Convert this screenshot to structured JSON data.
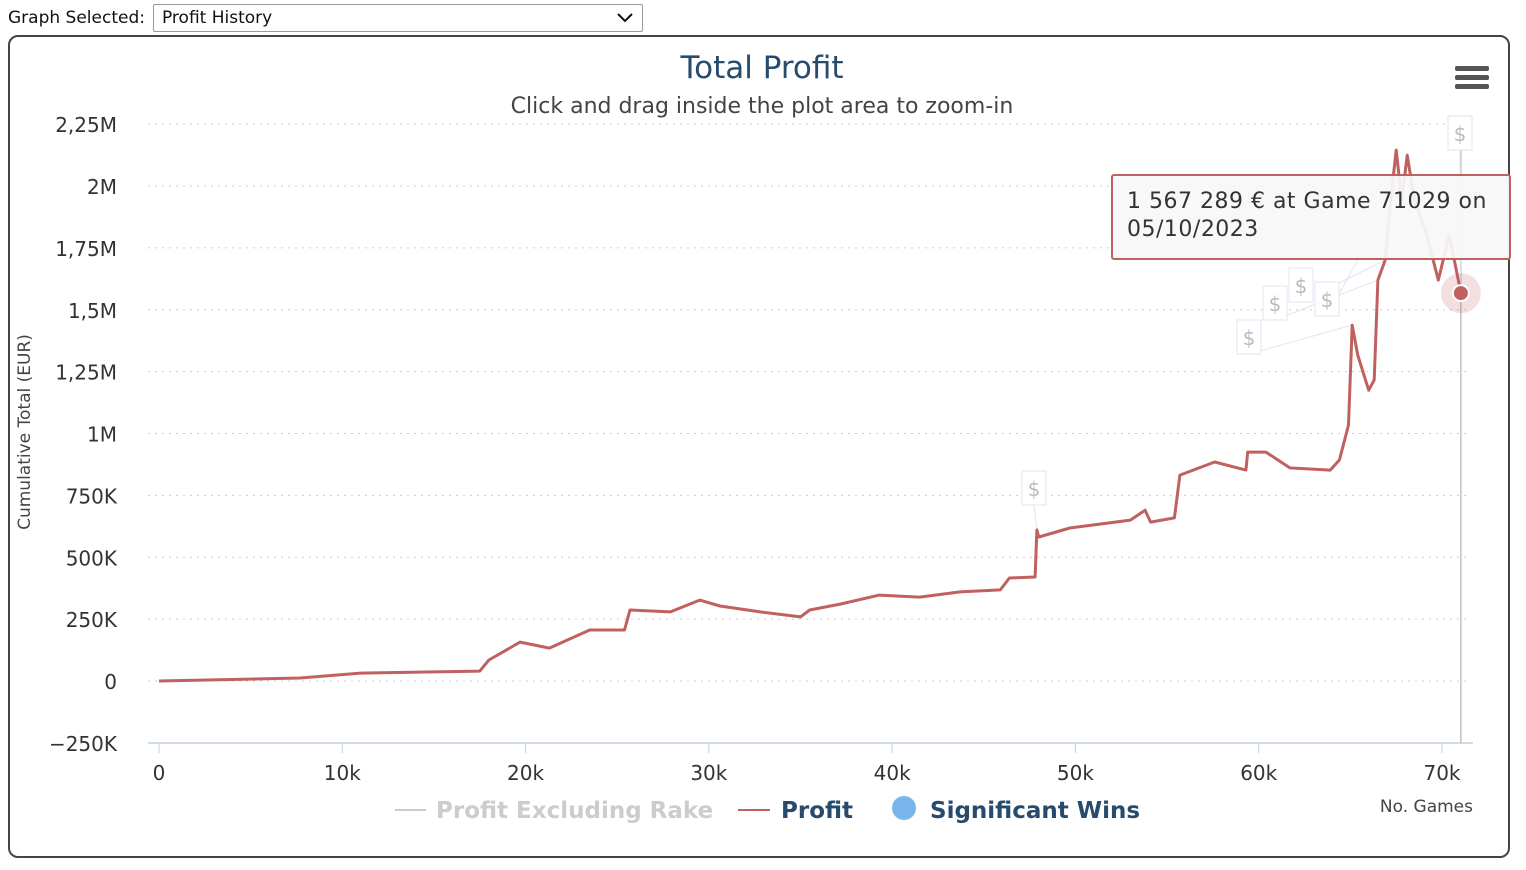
{
  "control": {
    "label": "Graph Selected:",
    "selected": "Profit History"
  },
  "chart_data": {
    "type": "line",
    "title": "Total Profit",
    "subtitle": "Click and drag inside the plot area to zoom-in",
    "xlabel": "No. Games",
    "ylabel": "Cumulative Total (EUR)",
    "xlim": [
      0,
      72000
    ],
    "ylim": [
      -250000,
      2250000
    ],
    "xticks": [
      0,
      10000,
      20000,
      30000,
      40000,
      50000,
      60000,
      70000
    ],
    "xtick_labels": [
      "0",
      "10k",
      "20k",
      "30k",
      "40k",
      "50k",
      "60k",
      "70k"
    ],
    "yticks": [
      -250000,
      0,
      250000,
      500000,
      750000,
      1000000,
      1250000,
      1500000,
      1750000,
      2000000,
      2250000
    ],
    "ytick_labels": [
      "−250K",
      "0",
      "250K",
      "500K",
      "750K",
      "1M",
      "1,25M",
      "1,5M",
      "1,75M",
      "2M",
      "2,25M"
    ],
    "grid": true,
    "legend_placement": "bottom",
    "series": [
      {
        "name": "Profit Excluding Rake",
        "color": "#cccccc",
        "hidden": true,
        "x": [],
        "y": []
      },
      {
        "name": "Profit",
        "color": "#c0605f",
        "x": [
          0,
          7700,
          11000,
          17500,
          18000,
          19700,
          21300,
          23500,
          25400,
          25700,
          27900,
          29500,
          30600,
          32800,
          35000,
          35500,
          37200,
          39300,
          41500,
          43700,
          45900,
          46400,
          47800,
          47900,
          48000,
          49700,
          53000,
          53800,
          54100,
          55400,
          55700,
          57600,
          59300,
          59400,
          60400,
          61700,
          63900,
          64400,
          64900,
          65100,
          65400,
          66000,
          66300,
          66500,
          66900,
          67200,
          67500,
          67800,
          68100,
          68500,
          69100,
          69800,
          70400,
          71029
        ],
        "y": [
          0,
          12000,
          32000,
          40000,
          85000,
          157000,
          133000,
          206000,
          206000,
          287000,
          279000,
          327000,
          303000,
          279000,
          259000,
          287000,
          311000,
          347000,
          339000,
          360000,
          368000,
          416000,
          420000,
          610000,
          582000,
          618000,
          650000,
          690000,
          642000,
          659000,
          832000,
          885000,
          852000,
          925000,
          925000,
          861000,
          852000,
          893000,
          1034000,
          1438000,
          1317000,
          1175000,
          1216000,
          1620000,
          1701000,
          1943000,
          2145000,
          1943000,
          2125000,
          1943000,
          1822000,
          1620000,
          1802000,
          1567289
        ]
      },
      {
        "name": "Significant Wins",
        "color": "#7cb5ec",
        "flag_text": "$",
        "x": [
          47900,
          65100,
          66500,
          66900,
          67200,
          71029
        ]
      }
    ],
    "tooltip": {
      "game": 71029,
      "value": 1567289,
      "text": "1 567 289 € at Game 71029 on 05/10/2023"
    }
  }
}
